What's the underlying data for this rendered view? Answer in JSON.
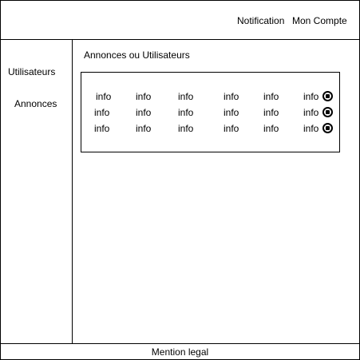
{
  "header": {
    "notification_label": "Notification",
    "account_label": "Mon Compte"
  },
  "sidebar": {
    "items": [
      {
        "label": "Utilisateurs"
      },
      {
        "label": "Annonces"
      }
    ]
  },
  "main": {
    "title": "Annonces ou Utilisateurs",
    "table": {
      "rows": [
        [
          "info",
          "info",
          "info",
          "info",
          "info",
          "info"
        ],
        [
          "info",
          "info",
          "info",
          "info",
          "info",
          "info"
        ],
        [
          "info",
          "info",
          "info",
          "info",
          "info",
          "info"
        ]
      ],
      "row_action_icon": "delete-icon"
    }
  },
  "footer": {
    "text": "Mention legal"
  }
}
